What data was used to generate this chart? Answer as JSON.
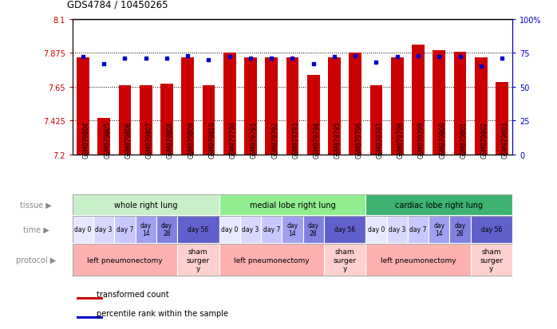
{
  "title": "GDS4784 / 10450265",
  "samples": [
    "GSM979804",
    "GSM979805",
    "GSM979806",
    "GSM979807",
    "GSM979808",
    "GSM979809",
    "GSM979810",
    "GSM979790",
    "GSM979791",
    "GSM979792",
    "GSM979793",
    "GSM979794",
    "GSM979795",
    "GSM979796",
    "GSM979797",
    "GSM979798",
    "GSM979799",
    "GSM979800",
    "GSM979801",
    "GSM979802",
    "GSM979803"
  ],
  "red_values": [
    7.845,
    7.44,
    7.66,
    7.66,
    7.67,
    7.845,
    7.66,
    7.875,
    7.845,
    7.845,
    7.845,
    7.73,
    7.845,
    7.875,
    7.66,
    7.845,
    7.93,
    7.895,
    7.88,
    7.845,
    7.68
  ],
  "blue_values": [
    72,
    67,
    71,
    71,
    71,
    73,
    70,
    72,
    71,
    71,
    71,
    67,
    72,
    73,
    68,
    72,
    73,
    72,
    72,
    65,
    71
  ],
  "ymin": 7.2,
  "ymax": 8.1,
  "y_ticks": [
    7.2,
    7.425,
    7.65,
    7.875,
    8.1
  ],
  "y_tick_labels": [
    "7.2",
    "7.425",
    "7.65",
    "7.875",
    "8.1"
  ],
  "y2min": 0,
  "y2max": 100,
  "y2_ticks": [
    0,
    25,
    50,
    75,
    100
  ],
  "y2_tick_labels": [
    "0",
    "25",
    "50",
    "75",
    "100%"
  ],
  "tissue_groups": [
    {
      "label": "whole right lung",
      "start": 0,
      "end": 7,
      "color": "#c8f0c8"
    },
    {
      "label": "medial lobe right lung",
      "start": 7,
      "end": 14,
      "color": "#90ee90"
    },
    {
      "label": "cardiac lobe right lung",
      "start": 14,
      "end": 21,
      "color": "#3cb371"
    }
  ],
  "time_groups": [
    {
      "label": "day 0",
      "start": 0,
      "end": 1,
      "color": "#e8e8ff"
    },
    {
      "label": "day 3",
      "start": 1,
      "end": 2,
      "color": "#d8d8ff"
    },
    {
      "label": "day 7",
      "start": 2,
      "end": 3,
      "color": "#c8c8ff"
    },
    {
      "label": "day\n14",
      "start": 3,
      "end": 4,
      "color": "#a0a0f0"
    },
    {
      "label": "day\n28",
      "start": 4,
      "end": 5,
      "color": "#8080e0"
    },
    {
      "label": "day 56",
      "start": 5,
      "end": 7,
      "color": "#6060cc"
    },
    {
      "label": "day 0",
      "start": 7,
      "end": 8,
      "color": "#e8e8ff"
    },
    {
      "label": "day 3",
      "start": 8,
      "end": 9,
      "color": "#d8d8ff"
    },
    {
      "label": "day 7",
      "start": 9,
      "end": 10,
      "color": "#c8c8ff"
    },
    {
      "label": "day\n14",
      "start": 10,
      "end": 11,
      "color": "#a0a0f0"
    },
    {
      "label": "day\n28",
      "start": 11,
      "end": 12,
      "color": "#8080e0"
    },
    {
      "label": "day 56",
      "start": 12,
      "end": 14,
      "color": "#6060cc"
    },
    {
      "label": "day 0",
      "start": 14,
      "end": 15,
      "color": "#e8e8ff"
    },
    {
      "label": "day 3",
      "start": 15,
      "end": 16,
      "color": "#d8d8ff"
    },
    {
      "label": "day 7",
      "start": 16,
      "end": 17,
      "color": "#c8c8ff"
    },
    {
      "label": "day\n14",
      "start": 17,
      "end": 18,
      "color": "#a0a0f0"
    },
    {
      "label": "day\n28",
      "start": 18,
      "end": 19,
      "color": "#8080e0"
    },
    {
      "label": "day 56",
      "start": 19,
      "end": 21,
      "color": "#6060cc"
    }
  ],
  "protocol_groups": [
    {
      "label": "left pneumonectomy",
      "start": 0,
      "end": 5,
      "color": "#ffb0b0"
    },
    {
      "label": "sham\nsurger\ny",
      "start": 5,
      "end": 7,
      "color": "#ffd0d0"
    },
    {
      "label": "left pneumonectomy",
      "start": 7,
      "end": 12,
      "color": "#ffb0b0"
    },
    {
      "label": "sham\nsurger\ny",
      "start": 12,
      "end": 14,
      "color": "#ffd0d0"
    },
    {
      "label": "left pneumonectomy",
      "start": 14,
      "end": 19,
      "color": "#ffb0b0"
    },
    {
      "label": "sham\nsurger\ny",
      "start": 19,
      "end": 21,
      "color": "#ffd0d0"
    }
  ],
  "bar_color": "#cc0000",
  "dot_color": "#0000cc",
  "grid_color": "#888888",
  "axis_color_left": "#cc0000",
  "axis_color_right": "#0000cc",
  "row_label_color": "#888888",
  "label_arrow_color": "#888888"
}
